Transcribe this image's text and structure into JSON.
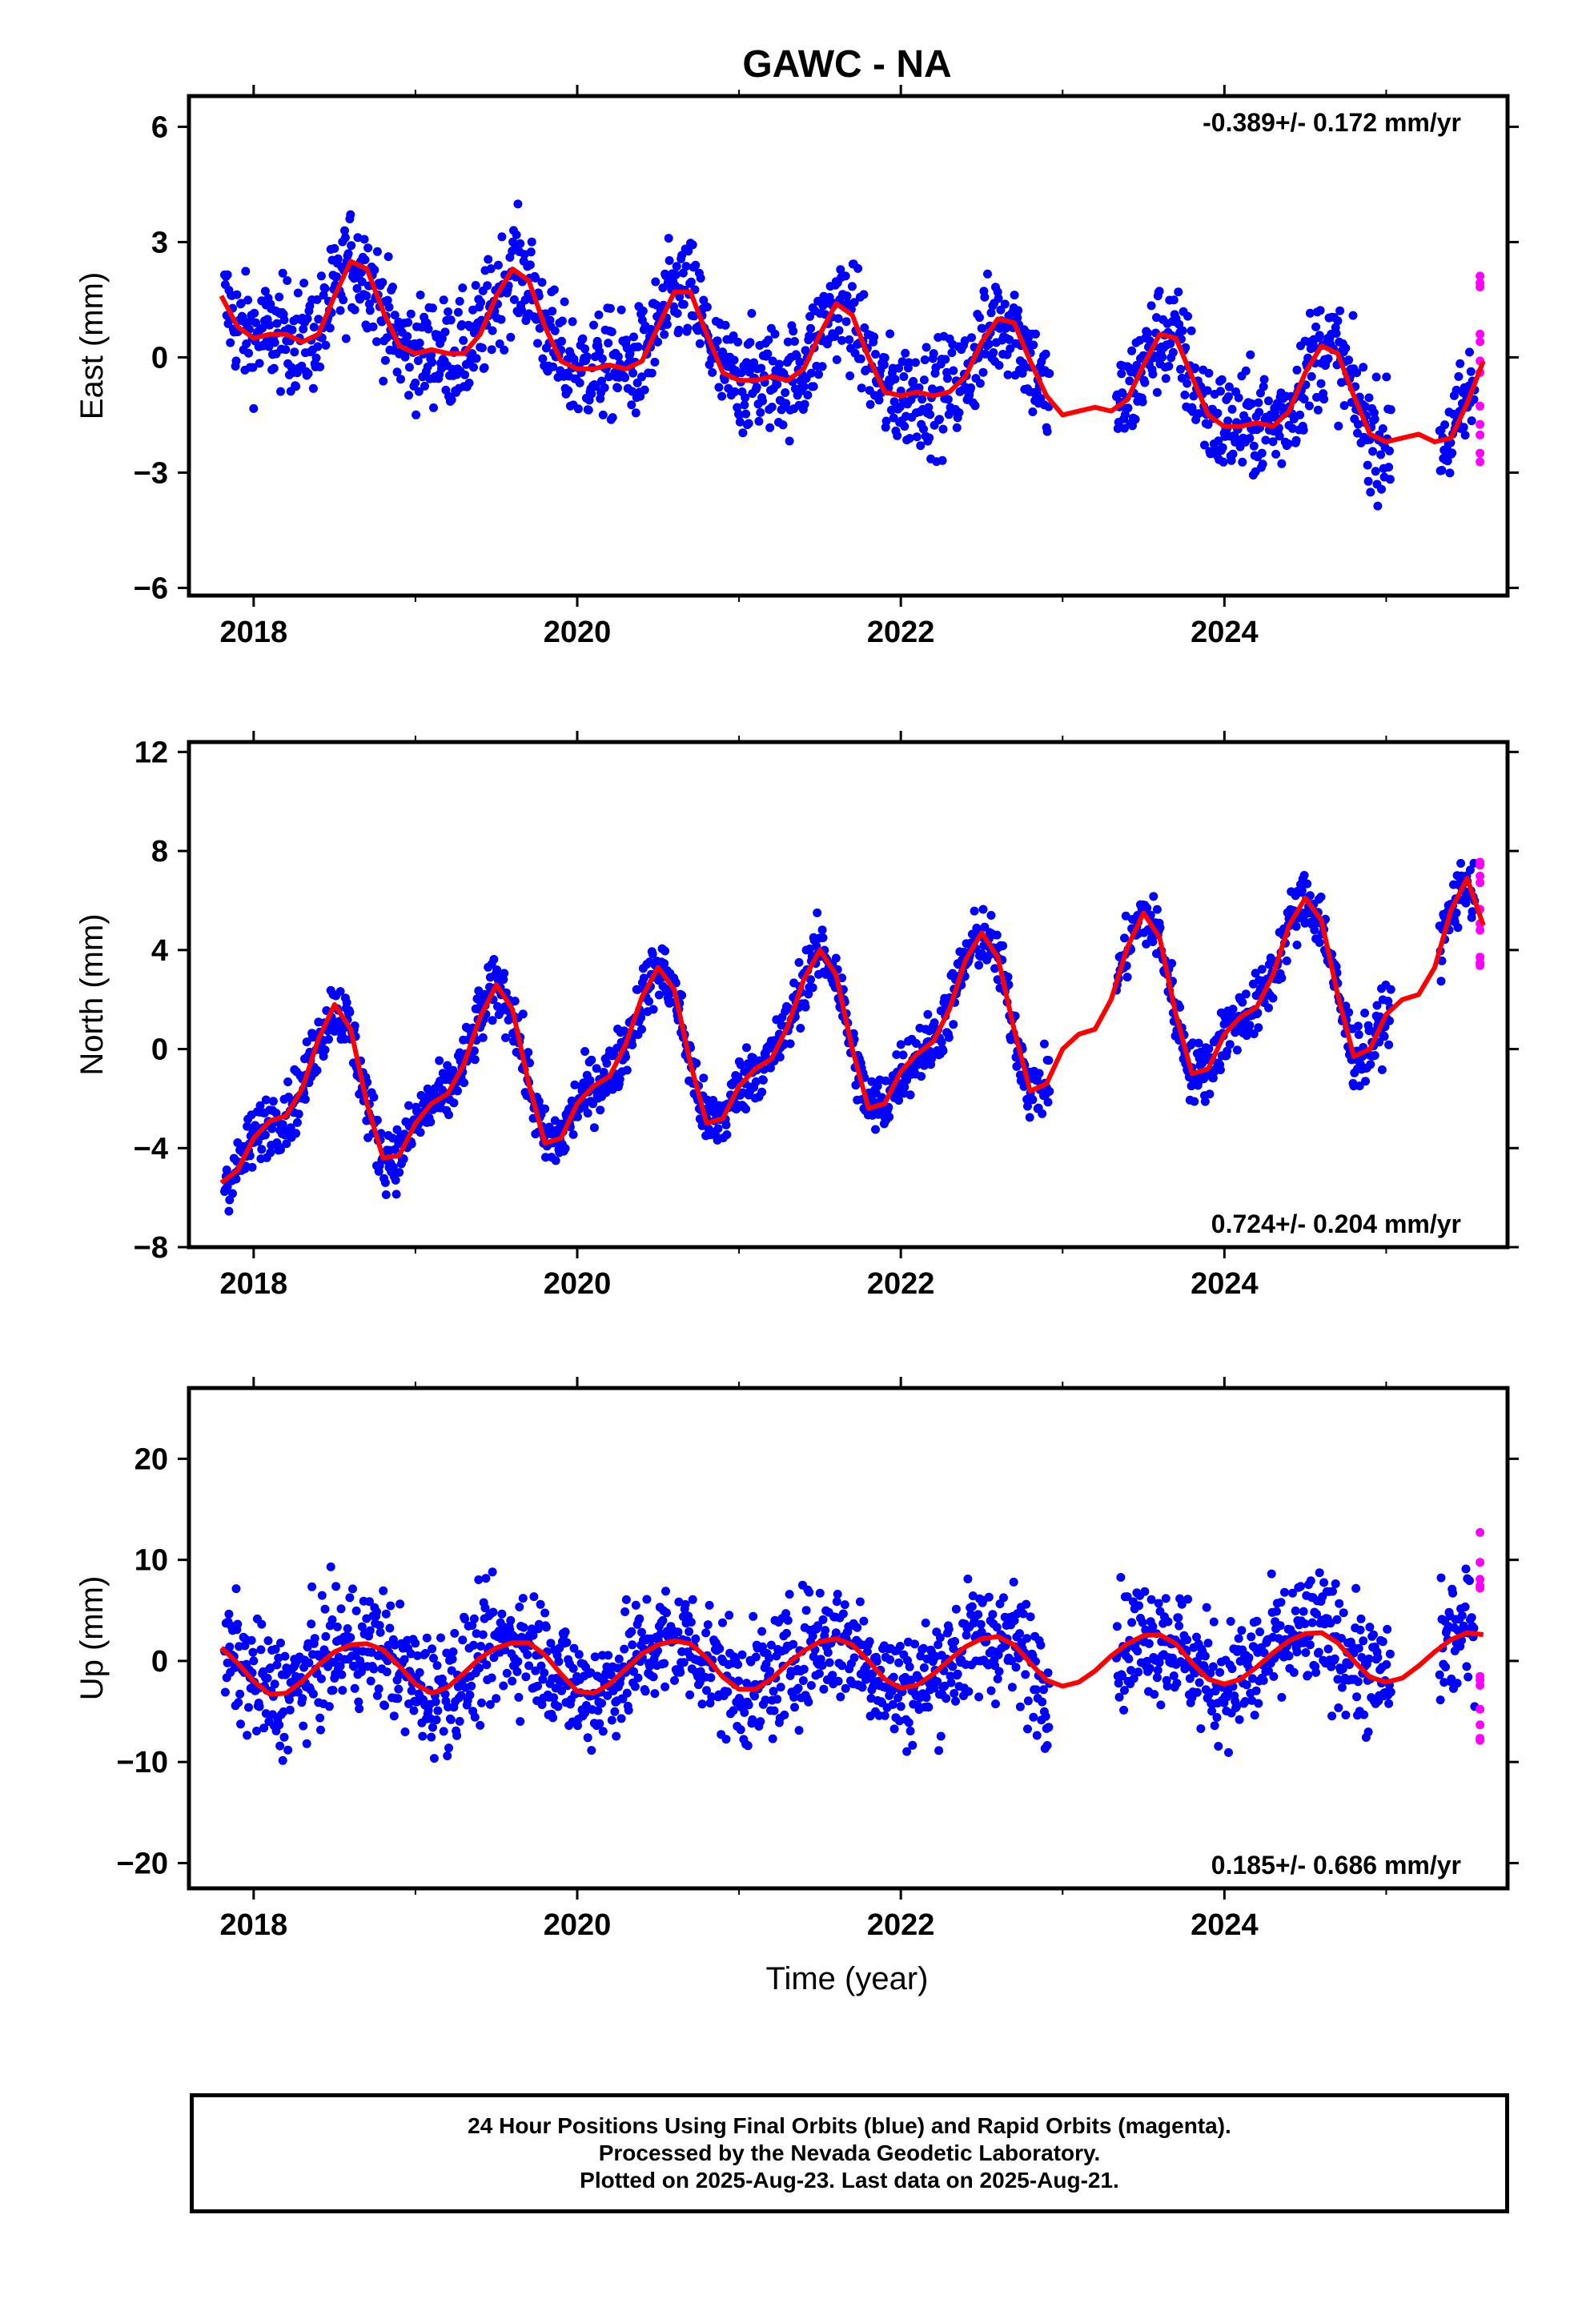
{
  "title": "GAWC - NA",
  "xlabel": "Time (year)",
  "x_ticks": [
    "2018",
    "2020",
    "2022",
    "2024"
  ],
  "colors": {
    "final_orbits": "#0000ff",
    "rapid_orbits": "#ff00ff",
    "model": "#ff0000"
  },
  "panels": [
    {
      "ylabel": "East (mm)",
      "trend": "-0.389+/- 0.172 mm/yr",
      "trend_position": "top-right",
      "y_ticks": [
        "6",
        "3",
        "0",
        "−3",
        "−6"
      ]
    },
    {
      "ylabel": "North (mm)",
      "trend": "0.724+/- 0.204 mm/yr",
      "trend_position": "bottom-right",
      "y_ticks": [
        "12",
        "8",
        "4",
        "0",
        "−4",
        "−8"
      ]
    },
    {
      "ylabel": "Up (mm)",
      "trend": "0.185+/- 0.686 mm/yr",
      "trend_position": "bottom-right",
      "y_ticks": [
        "20",
        "10",
        "0",
        "−10",
        "−20"
      ]
    }
  ],
  "footer": {
    "line1": "24 Hour Positions Using Final Orbits (blue) and Rapid Orbits (magenta).",
    "line2": "Processed by the Nevada Geodetic Laboratory.",
    "line3": "Plotted on 2025-Aug-23. Last data on 2025-Aug-21."
  },
  "chart_data": [
    {
      "type": "scatter",
      "ylabel": "East (mm)",
      "xlim": [
        2017.6,
        2025.75
      ],
      "ylim": [
        -6.2,
        6.8
      ],
      "grid": false,
      "model_curve": {
        "x": [
          2017.8,
          2017.9,
          2018.0,
          2018.1,
          2018.2,
          2018.3,
          2018.4,
          2018.5,
          2018.6,
          2018.7,
          2018.8,
          2018.9,
          2019.0,
          2019.1,
          2019.2,
          2019.3,
          2019.4,
          2019.5,
          2019.6,
          2019.7,
          2019.8,
          2019.9,
          2020.0,
          2020.1,
          2020.2,
          2020.3,
          2020.4,
          2020.5,
          2020.6,
          2020.7,
          2020.8,
          2020.9,
          2021.0,
          2021.1,
          2021.2,
          2021.3,
          2021.4,
          2021.5,
          2021.6,
          2021.7,
          2021.8,
          2021.9,
          2022.0,
          2022.1,
          2022.2,
          2022.3,
          2022.4,
          2022.5,
          2022.6,
          2022.7,
          2022.8,
          2022.9,
          2023.0,
          2023.1,
          2023.2,
          2023.3,
          2023.4,
          2023.5,
          2023.6,
          2023.7,
          2023.8,
          2023.9,
          2024.0,
          2024.1,
          2024.2,
          2024.3,
          2024.4,
          2024.5,
          2024.6,
          2024.7,
          2024.8,
          2024.9,
          2025.0,
          2025.1,
          2025.2,
          2025.3,
          2025.4,
          2025.5,
          2025.6
        ],
        "y": [
          1.6,
          0.8,
          0.5,
          0.6,
          0.6,
          0.4,
          0.6,
          1.6,
          2.5,
          2.3,
          1.2,
          0.3,
          0.1,
          0.2,
          0.1,
          0.1,
          0.6,
          1.6,
          2.3,
          2.0,
          0.8,
          -0.1,
          -0.3,
          -0.3,
          -0.2,
          -0.3,
          -0.1,
          0.8,
          1.7,
          1.7,
          0.6,
          -0.4,
          -0.6,
          -0.6,
          -0.5,
          -0.6,
          -0.3,
          0.6,
          1.4,
          1.1,
          0.0,
          -0.9,
          -1.0,
          -0.9,
          -1.0,
          -0.9,
          -0.5,
          0.4,
          1.0,
          0.9,
          -0.1,
          -1.0,
          -1.5,
          -1.4,
          -1.3,
          -1.4,
          -1.1,
          -0.2,
          0.6,
          0.5,
          -0.5,
          -1.5,
          -1.8,
          -1.8,
          -1.7,
          -1.8,
          -1.4,
          -0.4,
          0.3,
          0.1,
          -1.0,
          -2.0,
          -2.2,
          -2.1,
          -2.0,
          -2.2,
          -2.1,
          -1.2,
          -0.1
        ]
      },
      "trend": "-0.389+/- 0.172 mm/yr"
    },
    {
      "type": "scatter",
      "ylabel": "North (mm)",
      "xlim": [
        2017.6,
        2025.75
      ],
      "ylim": [
        -8.0,
        12.4
      ],
      "grid": false,
      "model_curve": {
        "x": [
          2017.8,
          2017.9,
          2018.0,
          2018.1,
          2018.2,
          2018.3,
          2018.4,
          2018.5,
          2018.6,
          2018.7,
          2018.8,
          2018.9,
          2019.0,
          2019.1,
          2019.2,
          2019.3,
          2019.4,
          2019.5,
          2019.6,
          2019.7,
          2019.8,
          2019.9,
          2020.0,
          2020.1,
          2020.2,
          2020.3,
          2020.4,
          2020.5,
          2020.6,
          2020.7,
          2020.8,
          2020.9,
          2021.0,
          2021.1,
          2021.2,
          2021.3,
          2021.4,
          2021.5,
          2021.6,
          2021.7,
          2021.8,
          2021.9,
          2022.0,
          2022.1,
          2022.2,
          2022.3,
          2022.4,
          2022.5,
          2022.6,
          2022.7,
          2022.8,
          2022.9,
          2023.0,
          2023.1,
          2023.2,
          2023.3,
          2023.4,
          2023.5,
          2023.6,
          2023.7,
          2023.8,
          2023.9,
          2024.0,
          2024.1,
          2024.2,
          2024.3,
          2024.4,
          2024.5,
          2024.6,
          2024.7,
          2024.8,
          2024.9,
          2025.0,
          2025.1,
          2025.2,
          2025.3,
          2025.4,
          2025.5,
          2025.6
        ],
        "y": [
          -5.4,
          -4.9,
          -3.6,
          -2.9,
          -2.7,
          -1.6,
          0.4,
          1.8,
          0.8,
          -2.2,
          -4.4,
          -4.3,
          -3.0,
          -2.2,
          -1.8,
          -0.6,
          1.3,
          2.6,
          1.6,
          -1.4,
          -3.8,
          -3.6,
          -2.2,
          -1.5,
          -1.1,
          0.2,
          2.1,
          3.3,
          2.4,
          -0.6,
          -3.0,
          -2.8,
          -1.5,
          -0.8,
          -0.4,
          0.9,
          2.8,
          4.0,
          3.0,
          0.0,
          -2.4,
          -2.2,
          -0.9,
          -0.2,
          0.3,
          1.6,
          3.6,
          4.7,
          3.7,
          0.8,
          -1.7,
          -1.4,
          0.0,
          0.6,
          0.8,
          2.0,
          4.1,
          5.5,
          4.5,
          1.4,
          -1.0,
          -0.8,
          0.6,
          1.3,
          1.7,
          3.0,
          5.0,
          6.1,
          5.2,
          2.2,
          -0.3,
          0.0,
          1.4,
          2.0,
          2.2,
          3.3,
          5.6,
          6.9,
          5.0
        ]
      },
      "trend": "0.724+/- 0.204 mm/yr"
    },
    {
      "type": "scatter",
      "ylabel": "Up (mm)",
      "xlim": [
        2017.6,
        2025.75
      ],
      "ylim": [
        -22.5,
        27.0
      ],
      "grid": false,
      "model_curve": {
        "x": [
          2017.8,
          2017.9,
          2018.0,
          2018.1,
          2018.2,
          2018.3,
          2018.4,
          2018.5,
          2018.6,
          2018.7,
          2018.8,
          2018.9,
          2019.0,
          2019.1,
          2019.2,
          2019.3,
          2019.4,
          2019.5,
          2019.6,
          2019.7,
          2019.8,
          2019.9,
          2020.0,
          2020.1,
          2020.2,
          2020.3,
          2020.4,
          2020.5,
          2020.6,
          2020.7,
          2020.8,
          2020.9,
          2021.0,
          2021.1,
          2021.2,
          2021.3,
          2021.4,
          2021.5,
          2021.6,
          2021.7,
          2021.8,
          2021.9,
          2022.0,
          2022.1,
          2022.2,
          2022.3,
          2022.4,
          2022.5,
          2022.6,
          2022.7,
          2022.8,
          2022.9,
          2023.0,
          2023.1,
          2023.2,
          2023.3,
          2023.4,
          2023.5,
          2023.6,
          2023.7,
          2023.8,
          2023.9,
          2024.0,
          2024.1,
          2024.2,
          2024.3,
          2024.4,
          2024.5,
          2024.6,
          2024.7,
          2024.8,
          2024.9,
          2025.0,
          2025.1,
          2025.2,
          2025.3,
          2025.4,
          2025.5,
          2025.6
        ],
        "y": [
          1.3,
          -0.2,
          -2.0,
          -3.3,
          -3.2,
          -2.0,
          -0.4,
          0.9,
          1.6,
          1.7,
          1.1,
          -0.5,
          -2.3,
          -3.2,
          -2.6,
          -1.2,
          0.3,
          1.3,
          1.8,
          1.8,
          0.6,
          -1.3,
          -3.0,
          -3.2,
          -2.3,
          -0.8,
          0.7,
          1.6,
          2.0,
          1.7,
          0.3,
          -1.6,
          -2.8,
          -2.8,
          -1.8,
          -0.3,
          1.0,
          1.9,
          2.2,
          1.6,
          0.0,
          -1.8,
          -2.7,
          -2.4,
          -1.3,
          0.1,
          1.4,
          2.2,
          2.4,
          1.6,
          -0.2,
          -1.9,
          -2.5,
          -2.1,
          -1.0,
          0.5,
          1.7,
          2.5,
          2.6,
          1.7,
          -0.2,
          -1.8,
          -2.3,
          -1.8,
          -0.6,
          0.8,
          2.0,
          2.7,
          2.8,
          1.8,
          0.0,
          -1.6,
          -2.1,
          -1.7,
          -0.5,
          0.9,
          2.1,
          2.8,
          2.6
        ]
      },
      "trend": "0.185+/- 0.686 mm/yr"
    }
  ]
}
